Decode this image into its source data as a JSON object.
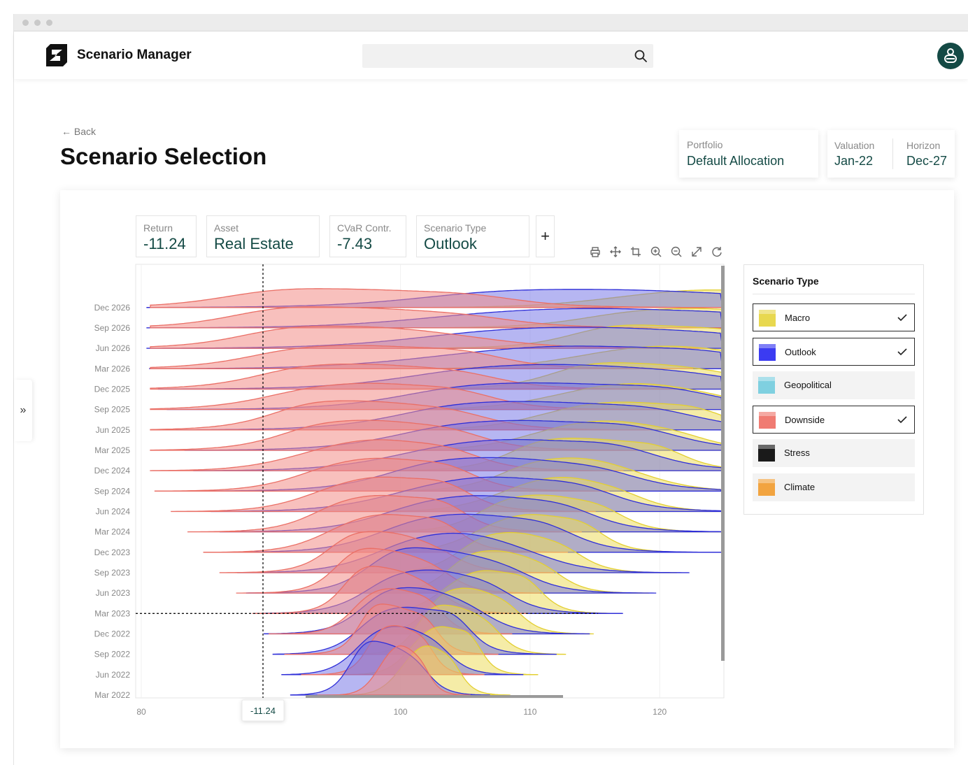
{
  "app": {
    "title": "Scenario Manager"
  },
  "search": {
    "placeholder": ""
  },
  "nav": {
    "back_label": "← Back"
  },
  "page": {
    "title": "Scenario Selection"
  },
  "info_cards": {
    "portfolio": {
      "label": "Portfolio",
      "value": "Default Allocation"
    },
    "valuation": {
      "label": "Valuation",
      "value": "Jan-22"
    },
    "horizon": {
      "label": "Horizon",
      "value": "Dec-27"
    }
  },
  "metrics": [
    {
      "label": "Return",
      "value": "-11.24"
    },
    {
      "label": "Asset",
      "value": "Real Estate"
    },
    {
      "label": "CVaR Contr.",
      "value": "-7.43"
    },
    {
      "label": "Scenario Type",
      "value": "Outlook"
    }
  ],
  "add_metric_label": "+",
  "toolbar_icons": [
    "print-icon",
    "move-icon",
    "crop-icon",
    "zoom-in-icon",
    "zoom-out-icon",
    "expand-icon",
    "reset-icon"
  ],
  "sidebar_toggle_label": "»",
  "legend": {
    "title": "Scenario Type",
    "items": [
      {
        "label": "Macro",
        "color": "#e8d84f",
        "checked": true
      },
      {
        "label": "Outlook",
        "color": "#3b3bf2",
        "checked": true
      },
      {
        "label": "Geopolitical",
        "color": "#7fd0e0",
        "checked": false
      },
      {
        "label": "Downside",
        "color": "#f07b72",
        "checked": true
      },
      {
        "label": "Stress",
        "color": "#1a1a1a",
        "checked": false
      },
      {
        "label": "Climate",
        "color": "#f2a440",
        "checked": false
      }
    ]
  },
  "chart_data": {
    "type": "ridgeline",
    "title": "",
    "xlabel": "",
    "ylabel": "",
    "x_ticks": [
      80,
      100,
      110,
      120
    ],
    "xlim": [
      80,
      125
    ],
    "y_categories": [
      "Mar 2022",
      "Jun 2022",
      "Sep 2022",
      "Dec 2022",
      "Mar 2023",
      "Jun 2023",
      "Sep 2023",
      "Dec 2023",
      "Mar 2024",
      "Jun 2024",
      "Sep 2024",
      "Dec 2024",
      "Mar 2025",
      "Jun 2025",
      "Sep 2025",
      "Dec 2025",
      "Mar 2026",
      "Jun 2026",
      "Sep 2026",
      "Dec 2026"
    ],
    "crosshair": {
      "x_label": "-11.24",
      "y_category": "Mar 2023"
    },
    "series": [
      {
        "name": "Macro",
        "color": "#e8d84f",
        "center_start": 102,
        "center_end": 124,
        "spread_start": 1.8,
        "spread_end": 7
      },
      {
        "name": "Outlook",
        "color": "#3b3bf2",
        "center_start": 99,
        "center_end": 116,
        "spread_start": 2.2,
        "spread_end": 11
      },
      {
        "name": "Downside",
        "color": "#f07b72",
        "center_start": 100,
        "center_end": 97,
        "spread_start": 1.5,
        "spread_end": 8
      }
    ]
  }
}
